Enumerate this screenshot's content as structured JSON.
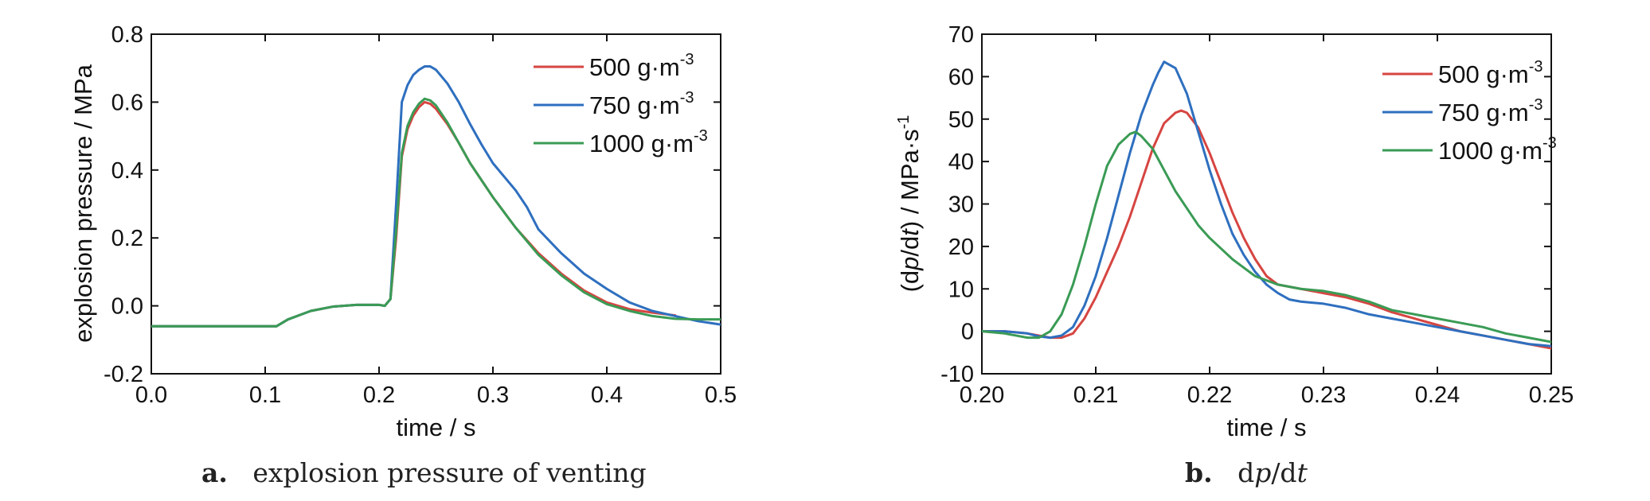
{
  "chart_data": [
    {
      "type": "line",
      "title": "",
      "xlabel": "time / s",
      "ylabel": "explosion pressure / MPa",
      "xlim": [
        0.0,
        0.5
      ],
      "ylim": [
        -0.2,
        0.8
      ],
      "xticks": [
        "0.0",
        "0.1",
        "0.2",
        "0.3",
        "0.4",
        "0.5"
      ],
      "yticks": [
        "-0.2",
        "0.0",
        "0.2",
        "0.4",
        "0.6",
        "0.8"
      ],
      "grid": false,
      "legend_position": "top-right",
      "caption_letter": "a.",
      "caption_text": "explosion pressure of venting",
      "series": [
        {
          "name": "500 g·m-3",
          "legend_base": "500 g·m",
          "legend_sup": "-3",
          "color": "#d64541",
          "x": [
            0.0,
            0.11,
            0.12,
            0.14,
            0.16,
            0.18,
            0.2,
            0.205,
            0.21,
            0.215,
            0.22,
            0.225,
            0.23,
            0.235,
            0.24,
            0.245,
            0.25,
            0.26,
            0.27,
            0.28,
            0.29,
            0.3,
            0.32,
            0.34,
            0.36,
            0.38,
            0.4,
            0.42,
            0.44,
            0.46
          ],
          "y": [
            -0.06,
            -0.06,
            -0.04,
            -0.015,
            -0.002,
            0.003,
            0.003,
            0.0,
            0.02,
            0.2,
            0.44,
            0.52,
            0.56,
            0.585,
            0.6,
            0.595,
            0.58,
            0.535,
            0.48,
            0.42,
            0.37,
            0.32,
            0.23,
            0.155,
            0.095,
            0.045,
            0.01,
            -0.01,
            -0.02,
            -0.028
          ]
        },
        {
          "name": "750 g·m-3",
          "legend_base": "750 g·m",
          "legend_sup": "-3",
          "color": "#2e6fbf",
          "x": [
            0.0,
            0.11,
            0.12,
            0.14,
            0.16,
            0.18,
            0.2,
            0.205,
            0.21,
            0.215,
            0.22,
            0.225,
            0.23,
            0.235,
            0.24,
            0.245,
            0.25,
            0.26,
            0.27,
            0.28,
            0.29,
            0.3,
            0.32,
            0.33,
            0.34,
            0.36,
            0.38,
            0.4,
            0.42,
            0.44,
            0.46,
            0.48,
            0.5
          ],
          "y": [
            -0.06,
            -0.06,
            -0.04,
            -0.015,
            -0.002,
            0.003,
            0.003,
            0.0,
            0.02,
            0.3,
            0.6,
            0.65,
            0.68,
            0.695,
            0.705,
            0.705,
            0.695,
            0.655,
            0.6,
            0.535,
            0.475,
            0.42,
            0.34,
            0.29,
            0.225,
            0.155,
            0.095,
            0.05,
            0.01,
            -0.015,
            -0.03,
            -0.045,
            -0.055
          ]
        },
        {
          "name": "1000 g·m-3",
          "legend_base": "1000 g·m",
          "legend_sup": "-3",
          "color": "#3a9b55",
          "x": [
            0.0,
            0.11,
            0.12,
            0.14,
            0.16,
            0.18,
            0.2,
            0.205,
            0.21,
            0.215,
            0.22,
            0.225,
            0.23,
            0.235,
            0.24,
            0.245,
            0.25,
            0.26,
            0.27,
            0.28,
            0.29,
            0.3,
            0.32,
            0.34,
            0.36,
            0.38,
            0.4,
            0.42,
            0.44,
            0.46,
            0.48,
            0.5
          ],
          "y": [
            -0.06,
            -0.06,
            -0.04,
            -0.015,
            -0.002,
            0.003,
            0.003,
            0.0,
            0.02,
            0.22,
            0.45,
            0.53,
            0.57,
            0.595,
            0.61,
            0.605,
            0.59,
            0.54,
            0.48,
            0.42,
            0.37,
            0.32,
            0.23,
            0.15,
            0.09,
            0.04,
            0.005,
            -0.015,
            -0.03,
            -0.038,
            -0.04,
            -0.04
          ]
        }
      ]
    },
    {
      "type": "line",
      "title": "",
      "xlabel": "time / s",
      "ylabel_parts": [
        "(d",
        "p",
        "/d",
        "t",
        ") / MPa·s"
      ],
      "ylabel_sup": "-1",
      "xlim": [
        0.2,
        0.25
      ],
      "ylim": [
        -10,
        70
      ],
      "xticks": [
        "0.20",
        "0.21",
        "0.22",
        "0.23",
        "0.24",
        "0.25"
      ],
      "yticks": [
        "-10",
        "0",
        "10",
        "20",
        "30",
        "40",
        "50",
        "60",
        "70"
      ],
      "grid": false,
      "legend_position": "top-right",
      "caption_letter": "b.",
      "caption_parts": [
        "d",
        "p",
        "/d",
        "t"
      ],
      "series": [
        {
          "name": "500 g·m-3",
          "legend_base": "500 g·m",
          "legend_sup": "-3",
          "color": "#d64541",
          "x": [
            0.2,
            0.202,
            0.204,
            0.206,
            0.207,
            0.208,
            0.209,
            0.21,
            0.211,
            0.212,
            0.213,
            0.214,
            0.215,
            0.216,
            0.217,
            0.2175,
            0.218,
            0.219,
            0.22,
            0.221,
            0.222,
            0.223,
            0.224,
            0.225,
            0.226,
            0.228,
            0.23,
            0.232,
            0.234,
            0.236,
            0.238,
            0.24,
            0.242,
            0.244,
            0.246,
            0.248,
            0.25
          ],
          "y": [
            0,
            0,
            -0.5,
            -1.5,
            -1.5,
            -0.5,
            3,
            8,
            14,
            20,
            27,
            35,
            43,
            49,
            51.5,
            52,
            51.5,
            48,
            42,
            35,
            28,
            22,
            17,
            13,
            11,
            10,
            9,
            8,
            6.5,
            4.5,
            3,
            1.5,
            0,
            -1,
            -2,
            -3,
            -4
          ]
        },
        {
          "name": "750 g·m-3",
          "legend_base": "750 g·m",
          "legend_sup": "-3",
          "color": "#2e6fbf",
          "x": [
            0.2,
            0.202,
            0.204,
            0.205,
            0.206,
            0.207,
            0.208,
            0.209,
            0.21,
            0.211,
            0.212,
            0.213,
            0.214,
            0.215,
            0.2155,
            0.216,
            0.217,
            0.218,
            0.219,
            0.22,
            0.221,
            0.222,
            0.223,
            0.224,
            0.225,
            0.226,
            0.227,
            0.228,
            0.23,
            0.232,
            0.234,
            0.236,
            0.238,
            0.24,
            0.242,
            0.244,
            0.246,
            0.248,
            0.25
          ],
          "y": [
            0,
            0,
            -0.5,
            -1.2,
            -1.5,
            -1,
            1,
            6,
            13,
            22,
            32,
            42,
            51,
            58,
            61,
            63.5,
            62,
            56,
            47,
            38,
            30,
            23,
            18,
            14,
            11,
            9,
            7.5,
            7,
            6.5,
            5.5,
            4,
            3,
            2,
            1,
            0,
            -1,
            -2,
            -3,
            -3.5
          ]
        },
        {
          "name": "1000 g·m-3",
          "legend_base": "1000 g·m",
          "legend_sup": "-3",
          "color": "#3a9b55",
          "x": [
            0.2,
            0.202,
            0.203,
            0.204,
            0.205,
            0.206,
            0.207,
            0.208,
            0.209,
            0.21,
            0.211,
            0.212,
            0.213,
            0.2135,
            0.214,
            0.215,
            0.216,
            0.217,
            0.218,
            0.219,
            0.22,
            0.222,
            0.224,
            0.226,
            0.228,
            0.23,
            0.232,
            0.234,
            0.236,
            0.238,
            0.24,
            0.242,
            0.244,
            0.246,
            0.248,
            0.25
          ],
          "y": [
            0,
            -0.5,
            -1,
            -1.5,
            -1.5,
            0,
            4,
            11,
            20,
            30,
            39,
            44,
            46.5,
            47,
            46,
            43,
            38,
            33,
            29,
            25,
            22,
            17,
            13,
            11,
            10,
            9.5,
            8.5,
            7,
            5,
            4,
            3,
            2,
            1,
            -0.5,
            -1.5,
            -2.5
          ]
        }
      ]
    }
  ]
}
